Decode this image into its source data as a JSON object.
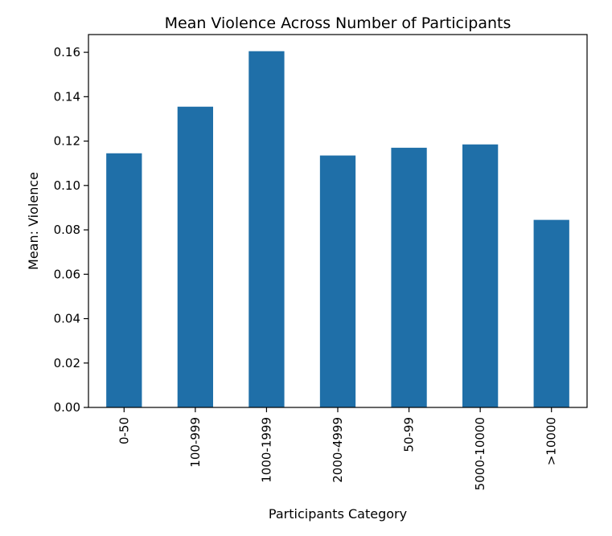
{
  "chart_data": {
    "type": "bar",
    "title": "Mean Violence Across Number of Participants",
    "xlabel": "Participants Category",
    "ylabel": "Mean: Violence",
    "categories": [
      "0-50",
      "100-999",
      "1000-1999",
      "2000-4999",
      "50-99",
      "5000-10000",
      ">10000"
    ],
    "values": [
      0.1145,
      0.1355,
      0.1605,
      0.1135,
      0.117,
      0.1185,
      0.0845
    ],
    "ylim": [
      0,
      0.168
    ],
    "yticks": [
      0.0,
      0.02,
      0.04,
      0.06,
      0.08,
      0.1,
      0.12,
      0.14,
      0.16
    ],
    "ytick_labels": [
      "0.00",
      "0.02",
      "0.04",
      "0.06",
      "0.08",
      "0.10",
      "0.12",
      "0.14",
      "0.16"
    ],
    "bar_color": "#1f6fa8",
    "grid": false,
    "legend": "none"
  }
}
